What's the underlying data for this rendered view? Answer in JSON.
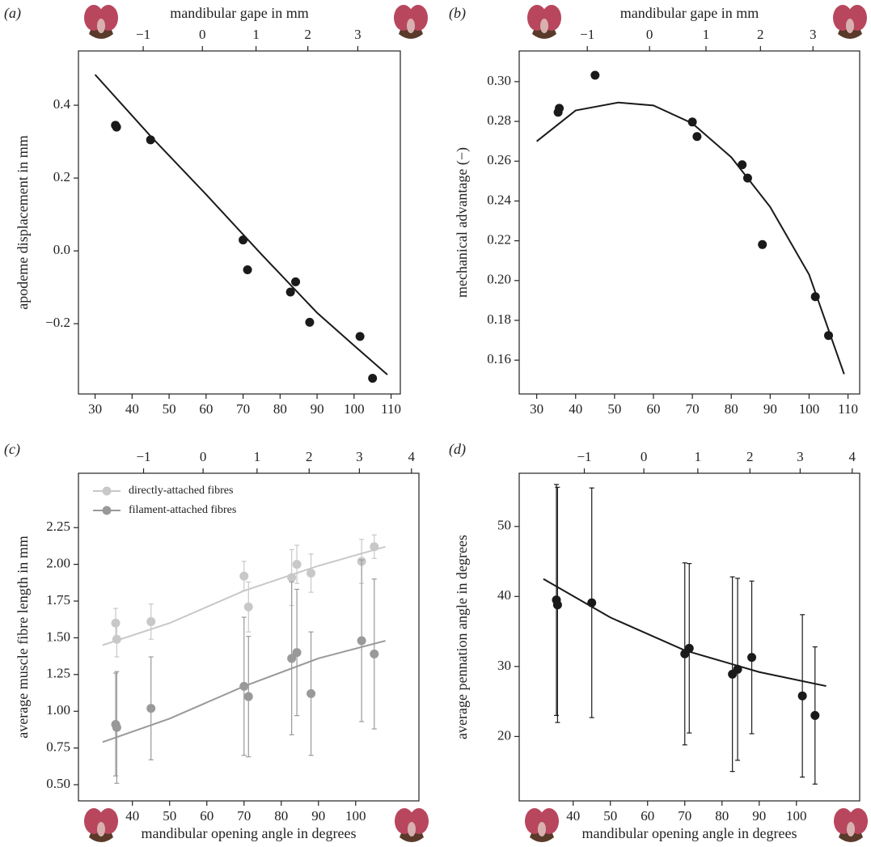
{
  "chart_data": [
    {
      "type": "scatter",
      "label": "(a)",
      "x2_title": "mandibular gape in mm",
      "y_title": "apodeme displacement in mm",
      "x": [
        35.5,
        35.8,
        45,
        70,
        71.2,
        82.8,
        84.2,
        88,
        101.6,
        105
      ],
      "series": [
        {
          "color": "#1a1a1a",
          "values": [
            0.345,
            0.34,
            0.305,
            0.03,
            -0.052,
            -0.113,
            -0.085,
            -0.196,
            -0.235,
            -0.35
          ],
          "fit": [
            0.484,
            0.315,
            0.155,
            -0.01,
            -0.17,
            -0.26,
            -0.34
          ]
        }
      ],
      "fit_x": [
        30,
        45,
        60,
        75,
        90,
        100,
        109
      ],
      "xlim": [
        25.5,
        112.5
      ],
      "xticks": [
        30,
        40,
        50,
        60,
        70,
        80,
        90,
        100,
        110
      ],
      "x2ticks": [
        {
          "value": -1,
          "label": "−1"
        },
        0,
        1,
        2,
        3
      ],
      "x2tick_angles": [
        43,
        59,
        73.5,
        87.5,
        101
      ],
      "ylim": [
        -0.393,
        0.549
      ],
      "yticks": [
        {
          "value": -0.2,
          "label": "−0.2"
        },
        {
          "value": 0,
          "label": "0.0"
        },
        0.2,
        0.4
      ]
    },
    {
      "type": "scatter",
      "label": "(b)",
      "x2_title": "mandibular gape in mm",
      "y_title": "mechanical advantage (−)",
      "x": [
        35.5,
        35.8,
        45,
        70,
        71.2,
        82.8,
        84.2,
        88,
        101.6,
        105
      ],
      "series": [
        {
          "color": "#1a1a1a",
          "values": [
            0.2846,
            0.2866,
            0.3032,
            0.2797,
            0.2724,
            0.2582,
            0.2515,
            0.2181,
            0.1919,
            0.1724
          ],
          "fit": [
            0.27,
            0.2855,
            0.2895,
            0.288,
            0.279,
            0.262,
            0.237,
            0.203,
            0.153
          ]
        }
      ],
      "fit_x": [
        30,
        40,
        51,
        60,
        70,
        80,
        90,
        100,
        109
      ],
      "xlim": [
        25.5,
        113
      ],
      "xticks": [
        30,
        40,
        50,
        60,
        70,
        80,
        90,
        100,
        110
      ],
      "x2ticks": [
        {
          "value": -1,
          "label": "−1"
        },
        0,
        1,
        2,
        3
      ],
      "x2tick_angles": [
        43,
        59,
        73.5,
        87.5,
        101
      ],
      "ylim": [
        0.143,
        0.3154
      ],
      "yticks": [
        0.16,
        0.18,
        {
          "value": 0.2,
          "label": "0.20"
        },
        0.22,
        0.24,
        0.26,
        0.28,
        {
          "value": 0.3,
          "label": "0.30"
        }
      ]
    },
    {
      "type": "scatter",
      "label": "(c)",
      "x_title": "mandibular opening angle in degrees",
      "y_title": "average muscle fibre length in mm",
      "x": [
        35.5,
        35.8,
        45,
        70,
        71.2,
        82.8,
        84.2,
        88,
        101.6,
        105
      ],
      "series": [
        {
          "name": "directly-attached fibres",
          "color": "#c8c8c8",
          "values": [
            1.6,
            1.49,
            1.61,
            1.92,
            1.71,
            1.91,
            2.0,
            1.94,
            2.02,
            2.12
          ],
          "errors": [
            0.1,
            0.12,
            0.12,
            0.1,
            0.17,
            0.19,
            0.13,
            0.13,
            0.15,
            0.08
          ],
          "fit": [
            1.45,
            1.6,
            1.82,
            1.99,
            2.12
          ]
        },
        {
          "name": "filament-attached fibres",
          "color": "#999999",
          "values": [
            0.91,
            0.89,
            1.02,
            1.17,
            1.1,
            1.36,
            1.4,
            1.12,
            1.48,
            1.39
          ],
          "errors": [
            0.35,
            0.38,
            0.35,
            0.47,
            0.41,
            0.52,
            0.43,
            0.42,
            0.55,
            0.51
          ],
          "fit": [
            0.79,
            0.95,
            1.17,
            1.36,
            1.48
          ]
        }
      ],
      "fit_x": [
        32,
        50,
        70,
        90,
        108
      ],
      "xlim": [
        25.5,
        117
      ],
      "xticks": [
        40,
        50,
        60,
        70,
        80,
        90,
        100
      ],
      "x2ticks": [
        {
          "value": -1,
          "label": "−1"
        },
        0,
        1,
        2,
        3,
        4
      ],
      "x2tick_angles": [
        43,
        59,
        73.5,
        87.5,
        101,
        115
      ],
      "ylim": [
        0.39,
        2.62
      ],
      "yticks": [
        {
          "value": 0.5,
          "label": "0.50"
        },
        0.75,
        {
          "value": 1,
          "label": "1.00"
        },
        1.25,
        {
          "value": 1.5,
          "label": "1.50"
        },
        1.75,
        {
          "value": 2,
          "label": "2.00"
        },
        2.25
      ],
      "legend": "upper left"
    },
    {
      "type": "scatter",
      "label": "(d)",
      "x_title": "mandibular opening angle in degrees",
      "y_title": "average pennation angle in degrees",
      "x": [
        35.5,
        35.8,
        45,
        70,
        71.2,
        82.8,
        84.2,
        88,
        101.6,
        105
      ],
      "series": [
        {
          "color": "#1a1a1a",
          "values": [
            39.5,
            38.8,
            39.1,
            31.8,
            32.6,
            28.9,
            29.6,
            31.3,
            25.8,
            23.0
          ],
          "errors": [
            16.5,
            16.8,
            16.4,
            13.0,
            12.1,
            13.9,
            13.0,
            10.9,
            11.6,
            9.8
          ],
          "fit": [
            42.5,
            37,
            32.3,
            29.2,
            27.2
          ]
        }
      ],
      "fit_x": [
        32,
        50,
        70,
        90,
        108
      ],
      "xlim": [
        25.5,
        117
      ],
      "xticks": [
        40,
        50,
        60,
        70,
        80,
        90,
        100
      ],
      "x2ticks": [
        {
          "value": -1,
          "label": "−1"
        },
        0,
        1,
        2,
        3,
        4
      ],
      "x2tick_angles": [
        43,
        59,
        73.5,
        87.5,
        101,
        115
      ],
      "ylim": [
        10.8,
        57.6
      ],
      "yticks": [
        20,
        30,
        40,
        50
      ]
    }
  ]
}
